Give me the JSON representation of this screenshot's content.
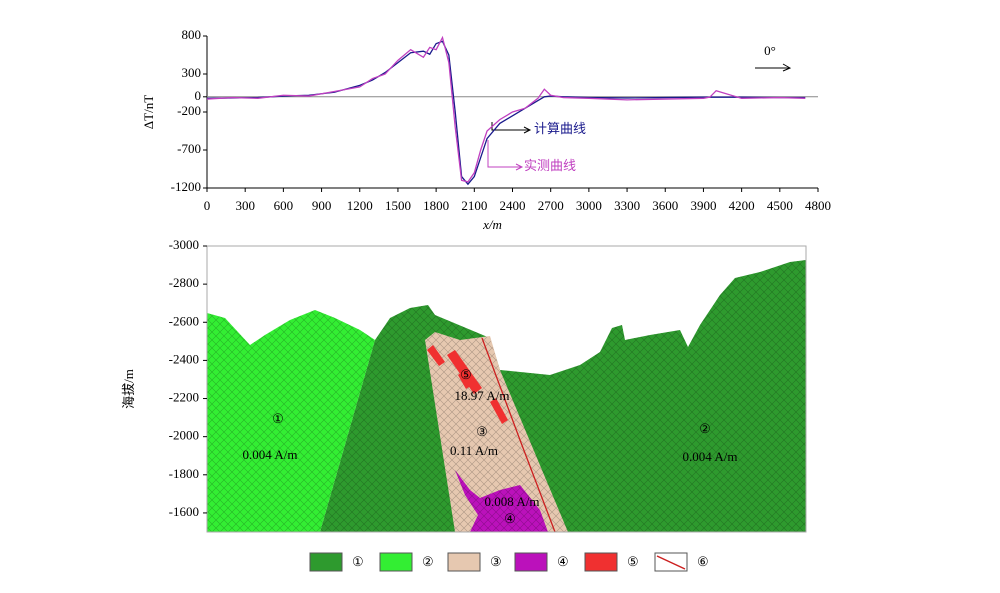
{
  "chart_data": [
    {
      "type": "line",
      "ylabel": "ΔT/nT",
      "xlabel": "x/m",
      "x": [
        0,
        200,
        400,
        600,
        800,
        1000,
        1200,
        1300,
        1400,
        1500,
        1600,
        1700,
        1750,
        1800,
        1850,
        1900,
        1950,
        2000,
        2050,
        2100,
        2150,
        2200,
        2300,
        2400,
        2500,
        2600,
        2650,
        2700,
        2800,
        3000,
        3300,
        3600,
        3900,
        3950,
        4000,
        4200,
        4500,
        4700
      ],
      "series": [
        {
          "name": "计算曲线",
          "color": "#1a1a8c",
          "values": [
            -20,
            -15,
            -10,
            10,
            20,
            60,
            150,
            220,
            320,
            450,
            580,
            600,
            560,
            700,
            730,
            550,
            -200,
            -1050,
            -1150,
            -1050,
            -800,
            -550,
            -350,
            -250,
            -150,
            -50,
            0,
            10,
            0,
            -10,
            -15,
            -10,
            -5,
            -5,
            -5,
            -5,
            -10,
            -10
          ]
        },
        {
          "name": "实测曲线",
          "color": "#c040c0",
          "values": [
            -30,
            -10,
            -20,
            20,
            10,
            70,
            130,
            240,
            300,
            480,
            620,
            520,
            650,
            620,
            780,
            450,
            -400,
            -1100,
            -1120,
            -1000,
            -700,
            -450,
            -300,
            -200,
            -150,
            -20,
            100,
            20,
            -10,
            -20,
            -40,
            -30,
            -20,
            -5,
            80,
            -20,
            -10,
            -20
          ]
        }
      ],
      "xlim": [
        0,
        4800
      ],
      "xticks": [
        0,
        300,
        600,
        900,
        1200,
        1500,
        1800,
        2100,
        2400,
        2700,
        3000,
        3300,
        3600,
        3900,
        4200,
        4500,
        4800
      ],
      "ylim": [
        -1200,
        800
      ],
      "yticks": [
        800,
        300,
        0,
        -200,
        -700,
        -1200
      ],
      "zero_line": true,
      "annotations": [
        "0°"
      ]
    },
    {
      "type": "section",
      "ylabel": "海拔/m",
      "ylim": [
        -1500,
        -3000
      ],
      "yticks": [
        -3000,
        -2800,
        -2600,
        -2400,
        -2200,
        -2000,
        -1800,
        -1600
      ],
      "annotations": [
        "①",
        "0.004 A/m",
        "②",
        "0.004 A/m",
        "⑤",
        "18.97 A/m",
        "③",
        "0.11 A/m",
        "0.008 A/m",
        "④"
      ],
      "legend": [
        {
          "label": "①",
          "color": "#2e9a2e"
        },
        {
          "label": "②",
          "color": "#33ee33"
        },
        {
          "label": "③",
          "color": "#e6c8b0"
        },
        {
          "label": "④",
          "color": "#bb11bb"
        },
        {
          "label": "⑤",
          "color": "#f03030"
        },
        {
          "label": "⑥",
          "color": "#cc2020"
        }
      ]
    }
  ]
}
